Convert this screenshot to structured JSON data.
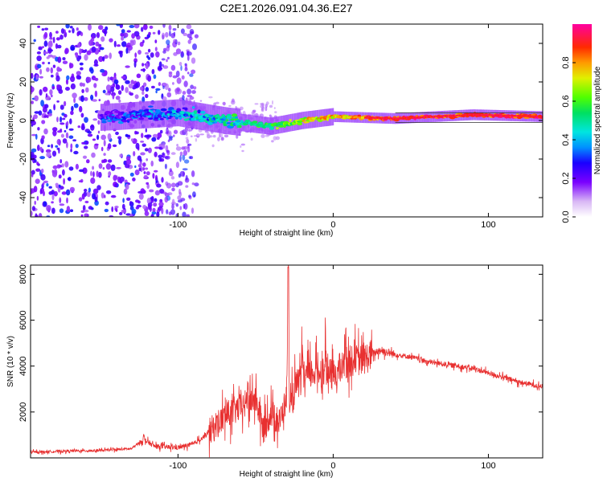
{
  "title": "C2E1.2026.091.04.36.E27",
  "chart_data": [
    {
      "type": "heatmap",
      "name": "spectrogram",
      "xlabel": "Height of straight line (km)",
      "ylabel": "Frequency (Hz)",
      "xlim": [
        -195,
        135
      ],
      "ylim": [
        -50,
        50
      ],
      "x_ticks": [
        -100,
        0,
        100
      ],
      "y_ticks": [
        40,
        20,
        0,
        -20,
        -40
      ],
      "colorbar": {
        "label": "Normalized spectral amplitude",
        "range": [
          0,
          1
        ],
        "ticks": [
          0.0,
          0.2,
          0.4,
          0.6,
          0.8
        ]
      },
      "description_points": [
        {
          "x": -195,
          "f": 0,
          "amp": 0.2
        },
        {
          "x": -140,
          "f": 2,
          "amp": 0.25
        },
        {
          "x": -100,
          "f": 4,
          "amp": 0.35
        },
        {
          "x": -70,
          "f": 0,
          "amp": 0.45
        },
        {
          "x": -40,
          "f": -3,
          "amp": 0.55
        },
        {
          "x": -20,
          "f": 0,
          "amp": 0.7
        },
        {
          "x": 0,
          "f": 2,
          "amp": 0.75
        },
        {
          "x": 40,
          "f": 1,
          "amp": 0.9
        },
        {
          "x": 90,
          "f": 3,
          "amp": 0.85
        },
        {
          "x": 135,
          "f": 2,
          "amp": 0.9
        }
      ]
    },
    {
      "type": "line",
      "name": "snr",
      "xlabel": "Height of straight line (km)",
      "ylabel": "SNR (10 * v/v)",
      "xlim": [
        -195,
        135
      ],
      "ylim": [
        0,
        8400
      ],
      "x_ticks": [
        -100,
        0,
        100
      ],
      "y_ticks": [
        2000,
        4000,
        6000,
        8000
      ],
      "series": [
        {
          "name": "SNR",
          "color": "#e83030",
          "x": [
            -195,
            -170,
            -150,
            -130,
            -122,
            -115,
            -100,
            -90,
            -80,
            -70,
            -60,
            -50,
            -45,
            -40,
            -35,
            -30,
            -29,
            -28,
            -25,
            -20,
            -10,
            0,
            10,
            20,
            30,
            40,
            50,
            60,
            70,
            80,
            90,
            100,
            110,
            120,
            135
          ],
          "y": [
            250,
            300,
            320,
            400,
            800,
            500,
            450,
            600,
            1100,
            1800,
            2200,
            2600,
            1200,
            2000,
            1500,
            2600,
            8000,
            1800,
            3000,
            3500,
            3800,
            3600,
            4200,
            4300,
            4700,
            4500,
            4400,
            4200,
            4100,
            4000,
            3900,
            3700,
            3500,
            3300,
            3100
          ],
          "spikes": [
            {
              "x": -122,
              "y": 1000
            },
            {
              "x": -55,
              "y": 3300
            },
            {
              "x": -29,
              "y": 8300
            },
            {
              "x": -20,
              "y": 4500
            },
            {
              "x": -5,
              "y": 5400
            },
            {
              "x": 8,
              "y": 6100
            },
            {
              "x": 14,
              "y": 5500
            }
          ]
        }
      ]
    }
  ]
}
